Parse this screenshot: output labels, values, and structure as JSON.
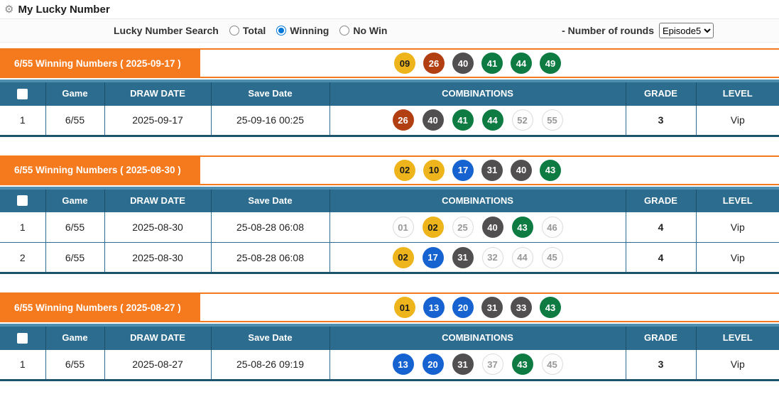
{
  "page": {
    "title": "My Lucky Number",
    "title_icon": "gear"
  },
  "filter": {
    "search_label": "Lucky Number Search",
    "radios": [
      {
        "label": "Total",
        "selected": false
      },
      {
        "label": "Winning",
        "selected": true
      },
      {
        "label": "No Win",
        "selected": false
      }
    ],
    "rounds_label": "- Number of rounds",
    "rounds_value": "Episode5"
  },
  "colors": {
    "accent_orange": "#F57A1E",
    "header_teal": "#2C6C8E",
    "header_strip": "#4E8FB0",
    "radio_selected": "#0076D7",
    "ball_yellow": "#EDB41B",
    "ball_red": "#B23F12",
    "ball_gray": "#514F4F",
    "ball_green": "#0E7C42",
    "ball_blue": "#1562D0",
    "ball_unmatched": "#FDFDFD"
  },
  "table": {
    "headers": [
      "Game",
      "DRAW DATE",
      "Save Date",
      "COMBINATIONS",
      "GRADE",
      "LEVEL"
    ]
  },
  "sections": [
    {
      "banner": "6/55 Winning Numbers ( 2025-09-17 )",
      "winning_numbers": [
        {
          "n": "09",
          "c": "yellow"
        },
        {
          "n": "26",
          "c": "red"
        },
        {
          "n": "40",
          "c": "gray"
        },
        {
          "n": "41",
          "c": "green"
        },
        {
          "n": "44",
          "c": "green"
        },
        {
          "n": "49",
          "c": "green"
        }
      ],
      "rows": [
        {
          "no": "1",
          "game": "6/55",
          "draw_date": "2025-09-17",
          "save_date": "25-09-16 00:25",
          "combinations": [
            {
              "n": "26",
              "c": "red"
            },
            {
              "n": "40",
              "c": "gray"
            },
            {
              "n": "41",
              "c": "green"
            },
            {
              "n": "44",
              "c": "green"
            },
            {
              "n": "52",
              "c": "none"
            },
            {
              "n": "55",
              "c": "none"
            }
          ],
          "grade": "3",
          "level": "Vip"
        }
      ]
    },
    {
      "banner": "6/55 Winning Numbers ( 2025-08-30 )",
      "winning_numbers": [
        {
          "n": "02",
          "c": "yellow"
        },
        {
          "n": "10",
          "c": "yellow"
        },
        {
          "n": "17",
          "c": "blue"
        },
        {
          "n": "31",
          "c": "gray"
        },
        {
          "n": "40",
          "c": "gray"
        },
        {
          "n": "43",
          "c": "green"
        }
      ],
      "rows": [
        {
          "no": "1",
          "game": "6/55",
          "draw_date": "2025-08-30",
          "save_date": "25-08-28 06:08",
          "combinations": [
            {
              "n": "01",
              "c": "none"
            },
            {
              "n": "02",
              "c": "yellow"
            },
            {
              "n": "25",
              "c": "none"
            },
            {
              "n": "40",
              "c": "gray"
            },
            {
              "n": "43",
              "c": "green"
            },
            {
              "n": "46",
              "c": "none"
            }
          ],
          "grade": "4",
          "level": "Vip"
        },
        {
          "no": "2",
          "game": "6/55",
          "draw_date": "2025-08-30",
          "save_date": "25-08-28 06:08",
          "combinations": [
            {
              "n": "02",
              "c": "yellow"
            },
            {
              "n": "17",
              "c": "blue"
            },
            {
              "n": "31",
              "c": "gray"
            },
            {
              "n": "32",
              "c": "none"
            },
            {
              "n": "44",
              "c": "none"
            },
            {
              "n": "45",
              "c": "none"
            }
          ],
          "grade": "4",
          "level": "Vip"
        }
      ]
    },
    {
      "banner": "6/55 Winning Numbers ( 2025-08-27 )",
      "winning_numbers": [
        {
          "n": "01",
          "c": "yellow"
        },
        {
          "n": "13",
          "c": "blue"
        },
        {
          "n": "20",
          "c": "blue"
        },
        {
          "n": "31",
          "c": "gray"
        },
        {
          "n": "33",
          "c": "gray"
        },
        {
          "n": "43",
          "c": "green"
        }
      ],
      "rows": [
        {
          "no": "1",
          "game": "6/55",
          "draw_date": "2025-08-27",
          "save_date": "25-08-26 09:19",
          "combinations": [
            {
              "n": "13",
              "c": "blue"
            },
            {
              "n": "20",
              "c": "blue"
            },
            {
              "n": "31",
              "c": "gray"
            },
            {
              "n": "37",
              "c": "none"
            },
            {
              "n": "43",
              "c": "green"
            },
            {
              "n": "45",
              "c": "none"
            }
          ],
          "grade": "3",
          "level": "Vip"
        }
      ]
    }
  ]
}
